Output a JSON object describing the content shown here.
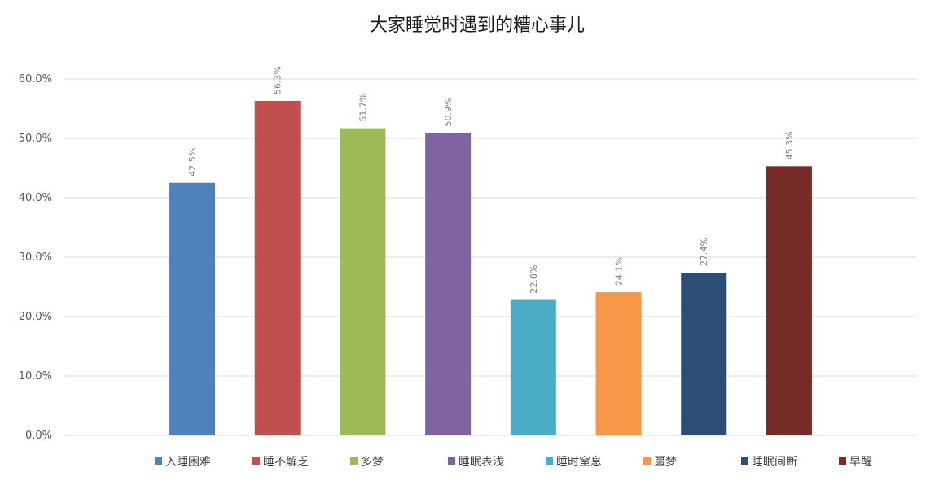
{
  "chart_data": {
    "type": "bar",
    "title": "大家睡觉时遇到的糟心事儿",
    "xlabel": "",
    "ylabel": "",
    "ylim": [
      0,
      60
    ],
    "y_ticks": [
      "0.0%",
      "10.0%",
      "20.0%",
      "30.0%",
      "40.0%",
      "50.0%",
      "60.0%"
    ],
    "grid": true,
    "legend_position": "bottom",
    "series": [
      {
        "name": "入睡困难",
        "value": 42.5,
        "label": "42.5%",
        "color": "#4F81BD"
      },
      {
        "name": "睡不解乏",
        "value": 56.3,
        "label": "56.3%",
        "color": "#C0504D"
      },
      {
        "name": "多梦",
        "value": 51.7,
        "label": "51.7%",
        "color": "#9BBB59"
      },
      {
        "name": "睡眠表浅",
        "value": 50.9,
        "label": "50.9%",
        "color": "#8064A2"
      },
      {
        "name": "睡时窒息",
        "value": 22.8,
        "label": "22.8%",
        "color": "#4BACC6"
      },
      {
        "name": "噩梦",
        "value": 24.1,
        "label": "24.1%",
        "color": "#F79646"
      },
      {
        "name": "睡眠间断",
        "value": 27.4,
        "label": "27.4%",
        "color": "#2C4D75"
      },
      {
        "name": "早醒",
        "value": 45.3,
        "label": "45.3%",
        "color": "#772C2A"
      }
    ]
  }
}
